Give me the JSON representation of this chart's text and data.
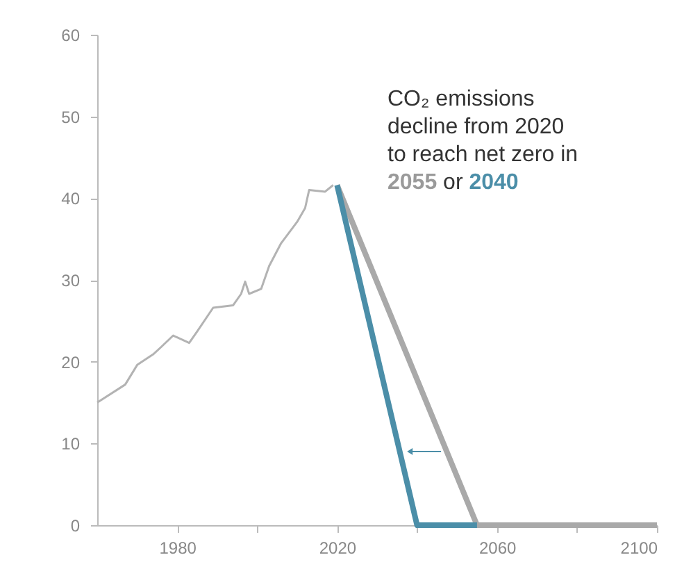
{
  "chart_data": {
    "type": "line",
    "x": [
      1960,
      1967,
      1970,
      1974,
      1976,
      1979,
      1983,
      1985,
      1989,
      1994,
      1996,
      1997,
      1998,
      2001,
      2003,
      2006,
      2010,
      2012,
      2013,
      2017,
      2019
    ],
    "series": [
      {
        "color": "#b3b3b3",
        "values": [
          15.0,
          17.2,
          19.6,
          20.9,
          21.8,
          23.2,
          22.3,
          23.7,
          26.6,
          26.9,
          28.3,
          29.8,
          28.3,
          28.9,
          31.7,
          34.5,
          37.1,
          38.8,
          41.0,
          40.8,
          41.6
        ]
      },
      {
        "color": "#a9a9a9",
        "x": [
          2020,
          2055,
          2100
        ],
        "values": [
          41.6,
          0,
          0
        ]
      },
      {
        "color": "#4b8ea8",
        "x": [
          2020,
          2040,
          2055
        ],
        "values": [
          41.6,
          0,
          0
        ]
      }
    ],
    "annotations": [
      "CO₂ emissions decline from 2020 to reach net zero in 2055 or 2040"
    ],
    "xlim": [
      1960,
      2100
    ],
    "xticks": [
      1980,
      {
        "value": 2000,
        "label": null
      },
      2020,
      {
        "value": 2040,
        "label": null
      },
      2060,
      {
        "value": 2080,
        "label": null
      },
      2100
    ],
    "ylim": [
      0,
      60
    ],
    "yticks": [
      0,
      10,
      20,
      30,
      40,
      50,
      60
    ],
    "grid": false
  }
}
